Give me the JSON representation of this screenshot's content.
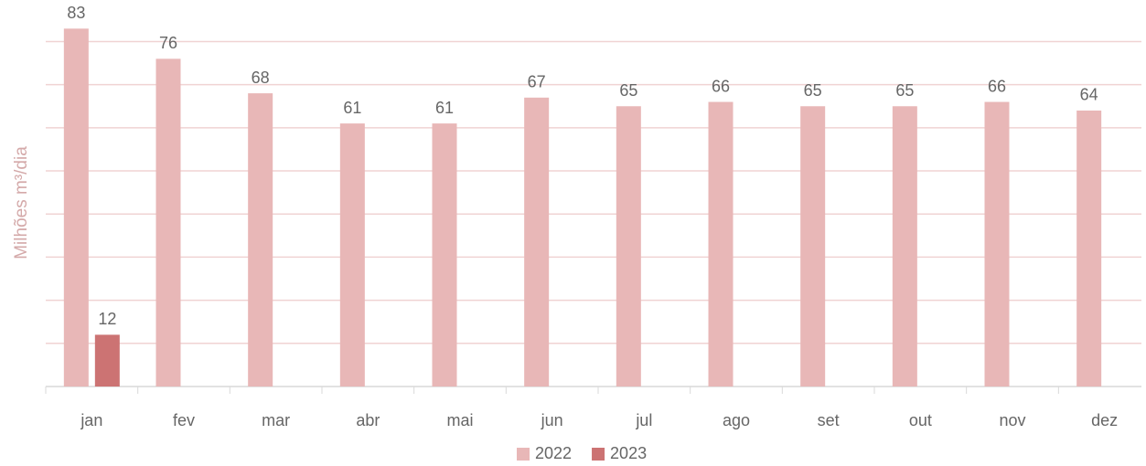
{
  "chart_data": {
    "type": "bar",
    "y_label": "Milhões m³/dia",
    "categories": [
      "jan",
      "fev",
      "mar",
      "abr",
      "mai",
      "jun",
      "jul",
      "ago",
      "set",
      "out",
      "nov",
      "dez"
    ],
    "series": [
      {
        "name": "2022",
        "color": "#e8b7b7",
        "values": [
          83,
          76,
          68,
          61,
          61,
          67,
          65,
          66,
          65,
          65,
          66,
          64
        ]
      },
      {
        "name": "2023",
        "color": "#cc7373",
        "values": [
          12,
          null,
          null,
          null,
          null,
          null,
          null,
          null,
          null,
          null,
          null,
          null
        ]
      }
    ],
    "ylim": [
      0,
      89
    ],
    "yticks": [
      0,
      10,
      20,
      30,
      40,
      50,
      60,
      70,
      80
    ],
    "grid": true,
    "show_ytick_labels": false,
    "legend": "bottom"
  }
}
